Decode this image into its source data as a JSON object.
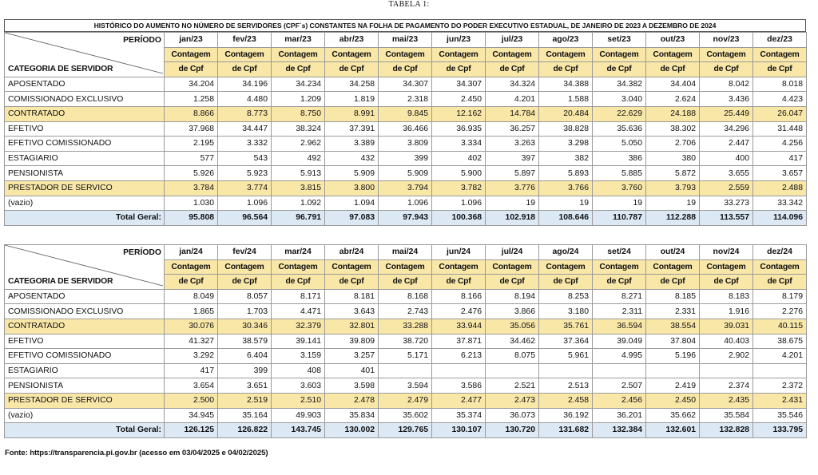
{
  "tabela_label": "TABELA 1:",
  "main_title": "HISTÓRICO DO AUMENTO NO NÚMERO DE SERVIDORES (CPF´s) CONSTANTES NA FOLHA DE PAGAMENTO DO PODER EXECUTIVO ESTADUAL, DE JANEIRO DE 2023 A DEZEMBRO DE 2024",
  "periodo_label": "PERÍODO",
  "categoria_label": "CATEGORIA DE SERVIDOR",
  "contagem_line1": "Contagem",
  "contagem_line2": "de Cpf",
  "total_label": "Total Geral:",
  "tables": [
    {
      "months": [
        "jan/23",
        "fev/23",
        "mar/23",
        "abr/23",
        "mai/23",
        "jun/23",
        "jul/23",
        "ago/23",
        "set/23",
        "out/23",
        "nov/23",
        "dez/23"
      ],
      "rows": [
        {
          "category": "APOSENTADO",
          "highlight": false,
          "values": [
            "34.204",
            "34.196",
            "34.234",
            "34.258",
            "34.307",
            "34.307",
            "34.324",
            "34.388",
            "34.382",
            "34.404",
            "8.042",
            "8.018"
          ]
        },
        {
          "category": "COMISSIONADO EXCLUSIVO",
          "highlight": false,
          "values": [
            "1.258",
            "4.480",
            "1.209",
            "1.819",
            "2.318",
            "2.450",
            "4.201",
            "1.588",
            "3.040",
            "2.624",
            "3.436",
            "4.423"
          ]
        },
        {
          "category": "CONTRATADO",
          "highlight": true,
          "values": [
            "8.866",
            "8.773",
            "8.750",
            "8.991",
            "9.845",
            "12.162",
            "14.784",
            "20.484",
            "22.629",
            "24.188",
            "25.449",
            "26.047"
          ]
        },
        {
          "category": "EFETIVO",
          "highlight": false,
          "values": [
            "37.968",
            "34.447",
            "38.324",
            "37.391",
            "36.466",
            "36.935",
            "36.257",
            "38.828",
            "35.636",
            "38.302",
            "34.296",
            "31.448"
          ]
        },
        {
          "category": "EFETIVO COMISSIONADO",
          "highlight": false,
          "values": [
            "2.195",
            "3.332",
            "2.962",
            "3.389",
            "3.809",
            "3.334",
            "3.263",
            "3.298",
            "5.050",
            "2.706",
            "2.447",
            "4.256"
          ]
        },
        {
          "category": "ESTAGIARIO",
          "highlight": false,
          "values": [
            "577",
            "543",
            "492",
            "432",
            "399",
            "402",
            "397",
            "382",
            "386",
            "380",
            "400",
            "417"
          ]
        },
        {
          "category": "PENSIONISTA",
          "highlight": false,
          "values": [
            "5.926",
            "5.923",
            "5.913",
            "5.909",
            "5.909",
            "5.900",
            "5.897",
            "5.893",
            "5.885",
            "5.872",
            "3.655",
            "3.657"
          ]
        },
        {
          "category": "PRESTADOR DE SERVICO",
          "highlight": true,
          "values": [
            "3.784",
            "3.774",
            "3.815",
            "3.800",
            "3.794",
            "3.782",
            "3.776",
            "3.766",
            "3.760",
            "3.793",
            "2.559",
            "2.488"
          ]
        },
        {
          "category": "(vazio)",
          "highlight": false,
          "values": [
            "1.030",
            "1.096",
            "1.092",
            "1.094",
            "1.096",
            "1.096",
            "19",
            "19",
            "19",
            "19",
            "33.273",
            "33.342"
          ]
        }
      ],
      "totals": [
        "95.808",
        "96.564",
        "96.791",
        "97.083",
        "97.943",
        "100.368",
        "102.918",
        "108.646",
        "110.787",
        "112.288",
        "113.557",
        "114.096"
      ]
    },
    {
      "months": [
        "jan/24",
        "fev/24",
        "mar/24",
        "abr/24",
        "mai/24",
        "jun/24",
        "jul/24",
        "ago/24",
        "set/24",
        "out/24",
        "nov/24",
        "dez/24"
      ],
      "rows": [
        {
          "category": "APOSENTADO",
          "highlight": false,
          "values": [
            "8.049",
            "8.057",
            "8.171",
            "8.181",
            "8.168",
            "8.166",
            "8.194",
            "8.253",
            "8.271",
            "8.185",
            "8.183",
            "8.179"
          ]
        },
        {
          "category": "COMISSIONADO EXCLUSIVO",
          "highlight": false,
          "values": [
            "1.865",
            "1.703",
            "4.471",
            "3.643",
            "2.743",
            "2.476",
            "3.866",
            "3.180",
            "2.311",
            "2.331",
            "1.916",
            "2.276"
          ]
        },
        {
          "category": "CONTRATADO",
          "highlight": true,
          "values": [
            "30.076",
            "30.346",
            "32.379",
            "32.801",
            "33.288",
            "33.944",
            "35.056",
            "35.761",
            "36.594",
            "38.554",
            "39.031",
            "40.115"
          ]
        },
        {
          "category": "EFETIVO",
          "highlight": false,
          "values": [
            "41.327",
            "38.579",
            "39.141",
            "39.809",
            "38.720",
            "37.871",
            "34.462",
            "37.364",
            "39.049",
            "37.804",
            "40.403",
            "38.675"
          ]
        },
        {
          "category": "EFETIVO COMISSIONADO",
          "highlight": false,
          "values": [
            "3.292",
            "6.404",
            "3.159",
            "3.257",
            "5.171",
            "6.213",
            "8.075",
            "5.961",
            "4.995",
            "5.196",
            "2.902",
            "4.201"
          ]
        },
        {
          "category": "ESTAGIARIO",
          "highlight": false,
          "values": [
            "417",
            "399",
            "408",
            "401",
            "",
            "",
            "",
            "",
            "",
            "",
            "",
            ""
          ]
        },
        {
          "category": "PENSIONISTA",
          "highlight": false,
          "values": [
            "3.654",
            "3.651",
            "3.603",
            "3.598",
            "3.594",
            "3.586",
            "2.521",
            "2.513",
            "2.507",
            "2.419",
            "2.374",
            "2.372"
          ]
        },
        {
          "category": "PRESTADOR DE SERVICO",
          "highlight": true,
          "values": [
            "2.500",
            "2.519",
            "2.510",
            "2.478",
            "2.479",
            "2.477",
            "2.473",
            "2.458",
            "2.456",
            "2.450",
            "2.435",
            "2.431"
          ]
        },
        {
          "category": "(vazio)",
          "highlight": false,
          "values": [
            "34.945",
            "35.164",
            "49.903",
            "35.834",
            "35.602",
            "35.374",
            "36.073",
            "36.192",
            "36.201",
            "35.662",
            "35.584",
            "35.546"
          ]
        }
      ],
      "totals": [
        "126.125",
        "126.822",
        "143.745",
        "130.002",
        "129.765",
        "130.107",
        "130.720",
        "131.682",
        "132.384",
        "132.601",
        "132.828",
        "133.795"
      ]
    }
  ],
  "fonte": "Fonte: https://transparencia.pi.gov.br (acesso em 03/04/2025 e 04/02/2025)",
  "colors": {
    "highlight_row": "#f9e7a8",
    "total_row": "#dde8f5"
  }
}
